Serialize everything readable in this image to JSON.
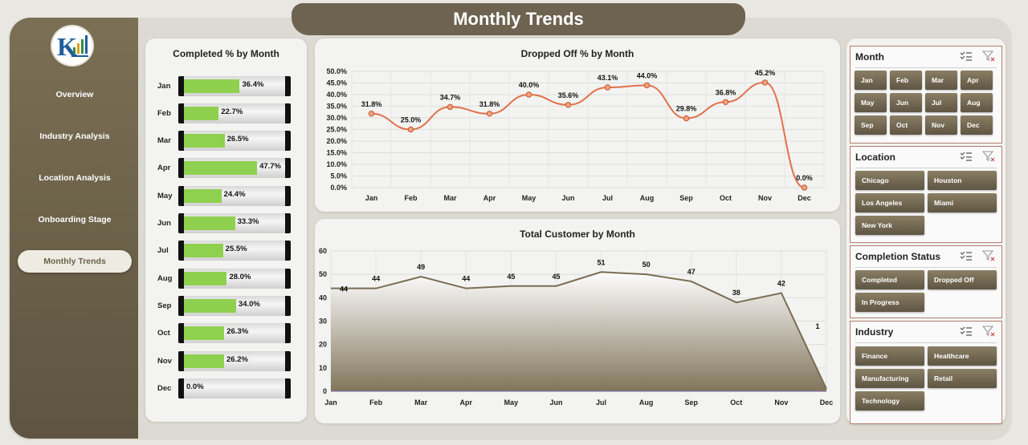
{
  "header": {
    "title": "Monthly Trends"
  },
  "sidebar": {
    "items": [
      {
        "label": "Overview",
        "name": "sidebar-item-overview",
        "active": false
      },
      {
        "label": "Industry Analysis",
        "name": "sidebar-item-industry-analysis",
        "active": false
      },
      {
        "label": "Location Analysis",
        "name": "sidebar-item-location-analysis",
        "active": false
      },
      {
        "label": "Onboarding Stage",
        "name": "sidebar-item-onboarding-stage",
        "active": false
      },
      {
        "label": "Monthly Trends",
        "name": "sidebar-item-monthly-trends",
        "active": true
      }
    ]
  },
  "colors": {
    "accent": "#6d6350",
    "bar_fill": "#8fd04e",
    "line": "#e0714a",
    "area_line": "#7a6d52"
  },
  "completed_chart": {
    "title": "Completed % by Month",
    "months": [
      "Jan",
      "Feb",
      "Mar",
      "Apr",
      "May",
      "Jun",
      "Jul",
      "Aug",
      "Sep",
      "Oct",
      "Nov",
      "Dec"
    ],
    "values": [
      36.4,
      22.7,
      26.5,
      47.7,
      24.4,
      33.3,
      25.5,
      28.0,
      34.0,
      26.3,
      26.2,
      0.0
    ],
    "labels": [
      "36.4%",
      "22.7%",
      "26.5%",
      "47.7%",
      "24.4%",
      "33.3%",
      "25.5%",
      "28.0%",
      "34.0%",
      "26.3%",
      "26.2%",
      "0.0%"
    ]
  },
  "chart_data": [
    {
      "type": "bar",
      "title": "Completed % by Month",
      "categories": [
        "Jan",
        "Feb",
        "Mar",
        "Apr",
        "May",
        "Jun",
        "Jul",
        "Aug",
        "Sep",
        "Oct",
        "Nov",
        "Dec"
      ],
      "values": [
        36.4,
        22.7,
        26.5,
        47.7,
        24.4,
        33.3,
        25.5,
        28.0,
        34.0,
        26.3,
        26.2,
        0.0
      ]
    },
    {
      "type": "line",
      "title": "Dropped Off % by Month",
      "categories": [
        "Jan",
        "Feb",
        "Mar",
        "Apr",
        "May",
        "Jun",
        "Jul",
        "Aug",
        "Sep",
        "Oct",
        "Nov",
        "Dec"
      ],
      "values": [
        31.8,
        25.0,
        34.7,
        31.8,
        40.0,
        35.6,
        43.1,
        44.0,
        29.8,
        36.8,
        45.2,
        0.0
      ],
      "labels": [
        "31.8%",
        "25.0%",
        "34.7%",
        "31.8%",
        "40.0%",
        "35.6%",
        "43.1%",
        "44.0%",
        "29.8%",
        "36.8%",
        "45.2%",
        "0.0%"
      ],
      "yticks": [
        "0.0%",
        "5.0%",
        "10.0%",
        "15.0%",
        "20.0%",
        "25.0%",
        "30.0%",
        "35.0%",
        "40.0%",
        "45.0%",
        "50.0%"
      ],
      "ylim": [
        0,
        50
      ],
      "grid": true
    },
    {
      "type": "area",
      "title": "Total Customer by Month",
      "categories": [
        "Jan",
        "Feb",
        "Mar",
        "Apr",
        "May",
        "Jun",
        "Jul",
        "Aug",
        "Sep",
        "Oct",
        "Nov",
        "Dec"
      ],
      "values": [
        44,
        44,
        49,
        44,
        45,
        45,
        51,
        50,
        47,
        38,
        42,
        1
      ],
      "labels": [
        "44",
        "44",
        "49",
        "44",
        "45",
        "45",
        "51",
        "50",
        "47",
        "38",
        "42",
        "1"
      ],
      "yticks": [
        "0",
        "10",
        "20",
        "30",
        "40",
        "50",
        "60"
      ],
      "ylim": [
        0,
        60
      ],
      "grid": true
    }
  ],
  "slicers": {
    "month": {
      "title": "Month",
      "items": [
        "Jan",
        "Feb",
        "Mar",
        "Apr",
        "May",
        "Jun",
        "Jul",
        "Aug",
        "Sep",
        "Oct",
        "Nov",
        "Dec"
      ]
    },
    "location": {
      "title": "Location",
      "items": [
        "Chicago",
        "Houston",
        "Los Angeles",
        "Miami",
        "New York"
      ]
    },
    "completion": {
      "title": "Completion Status",
      "items": [
        "Completed",
        "Dropped Off",
        "In Progress"
      ]
    },
    "industry": {
      "title": "Industry",
      "items": [
        "Finance",
        "Healthcare",
        "Manufacturing",
        "Retail",
        "Technology"
      ]
    },
    "icons": [
      "multi-select-icon",
      "clear-filter-icon"
    ]
  }
}
